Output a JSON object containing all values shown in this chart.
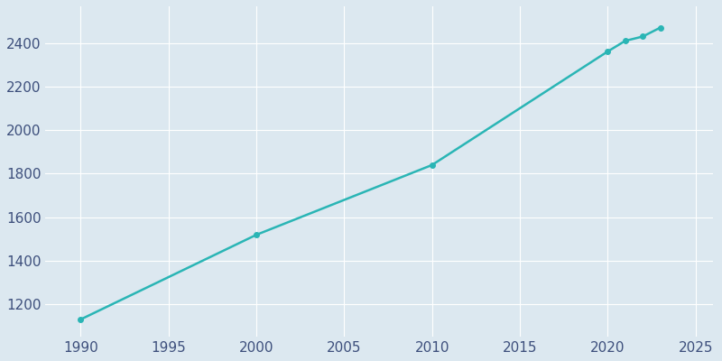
{
  "years": [
    1990,
    2000,
    2010,
    2020,
    2021,
    2022,
    2023
  ],
  "population": [
    1130,
    1519,
    1840,
    2362,
    2411,
    2431,
    2472
  ],
  "line_color": "#2ab5b5",
  "marker": "o",
  "marker_size": 4,
  "line_width": 1.8,
  "bg_color": "#dce8f0",
  "grid_color": "#ffffff",
  "tick_color": "#3d4f7c",
  "xlim": [
    1988.0,
    2026.0
  ],
  "ylim": [
    1050,
    2570
  ],
  "xticks": [
    1990,
    1995,
    2000,
    2005,
    2010,
    2015,
    2020,
    2025
  ],
  "yticks": [
    1200,
    1400,
    1600,
    1800,
    2000,
    2200,
    2400
  ],
  "title": ""
}
